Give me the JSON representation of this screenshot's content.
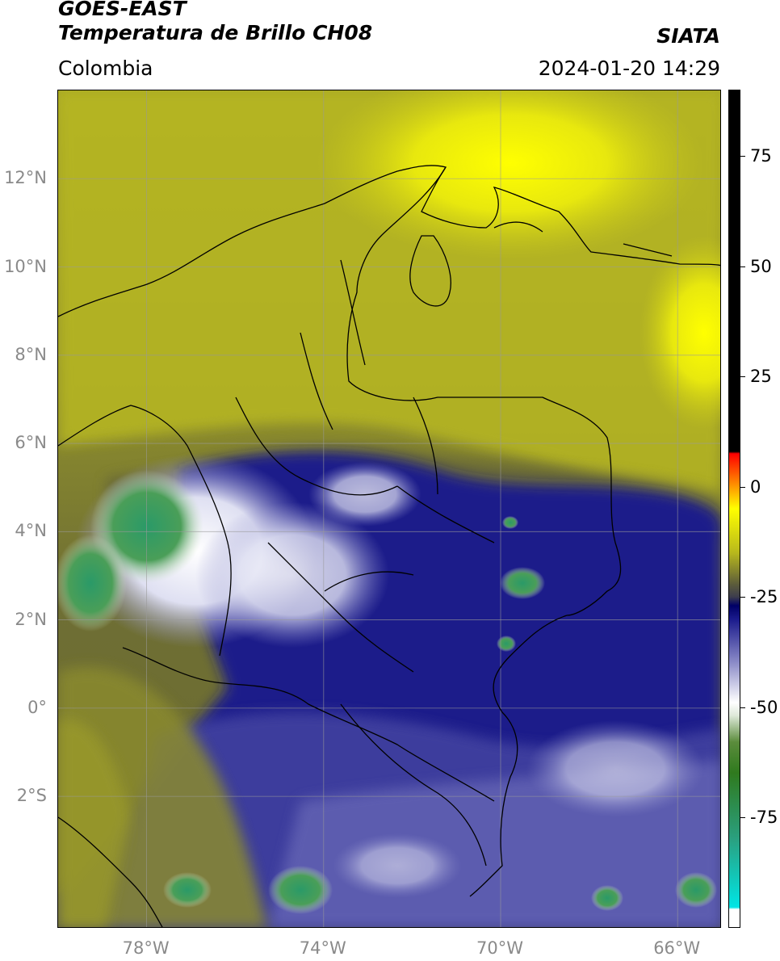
{
  "header": {
    "satellite": "GOES-EAST",
    "product": "Temperatura de Brillo CH08",
    "region": "Colombia",
    "agency": "SIATA",
    "timestamp": "2024-01-20 14:29"
  },
  "map": {
    "extent": {
      "lon_min": -80.0,
      "lon_max": -65.0,
      "lat_min": -5.0,
      "lat_max": 14.0
    },
    "lat_ticks": [
      {
        "value": 12,
        "label": "12°N"
      },
      {
        "value": 10,
        "label": "10°N"
      },
      {
        "value": 8,
        "label": "8°N"
      },
      {
        "value": 6,
        "label": "6°N"
      },
      {
        "value": 4,
        "label": "4°N"
      },
      {
        "value": 2,
        "label": "2°N"
      },
      {
        "value": 0,
        "label": "0°"
      },
      {
        "value": -2,
        "label": "2°S"
      }
    ],
    "lon_ticks": [
      {
        "value": -78,
        "label": "78°W"
      },
      {
        "value": -74,
        "label": "74°W"
      },
      {
        "value": -70,
        "label": "70°W"
      },
      {
        "value": -66,
        "label": "66°W"
      }
    ],
    "gridlines": true
  },
  "colorbar": {
    "range": [
      -100,
      90
    ],
    "ticks": [
      {
        "value": 75,
        "label": "75"
      },
      {
        "value": 50,
        "label": "50"
      },
      {
        "value": 25,
        "label": "25"
      },
      {
        "value": 0,
        "label": "0"
      },
      {
        "value": -25,
        "label": "-25"
      },
      {
        "value": -50,
        "label": "-50"
      },
      {
        "value": -75,
        "label": "-75"
      }
    ],
    "stops": [
      {
        "value": -100,
        "color": "#ffffff"
      },
      {
        "value": -96,
        "color": "#ffffff"
      },
      {
        "value": -95.5,
        "color": "#00e5e5"
      },
      {
        "value": -80,
        "color": "#2aa080"
      },
      {
        "value": -65,
        "color": "#2f7a1e"
      },
      {
        "value": -58,
        "color": "#5b8c3c"
      },
      {
        "value": -52,
        "color": "#dde8d8"
      },
      {
        "value": -49,
        "color": "#ffffff"
      },
      {
        "value": -40,
        "color": "#8c8cc8"
      },
      {
        "value": -30,
        "color": "#1a1a8c"
      },
      {
        "value": -27,
        "color": "#000066"
      },
      {
        "value": -25,
        "color": "#3d3d4d"
      },
      {
        "value": -22,
        "color": "#5e5e3a"
      },
      {
        "value": -15,
        "color": "#b8b81c"
      },
      {
        "value": -5,
        "color": "#ffff00"
      },
      {
        "value": 0,
        "color": "#ff9900"
      },
      {
        "value": 7.5,
        "color": "#ff0000"
      },
      {
        "value": 8,
        "color": "#000000"
      },
      {
        "value": 90,
        "color": "#000000"
      }
    ]
  }
}
